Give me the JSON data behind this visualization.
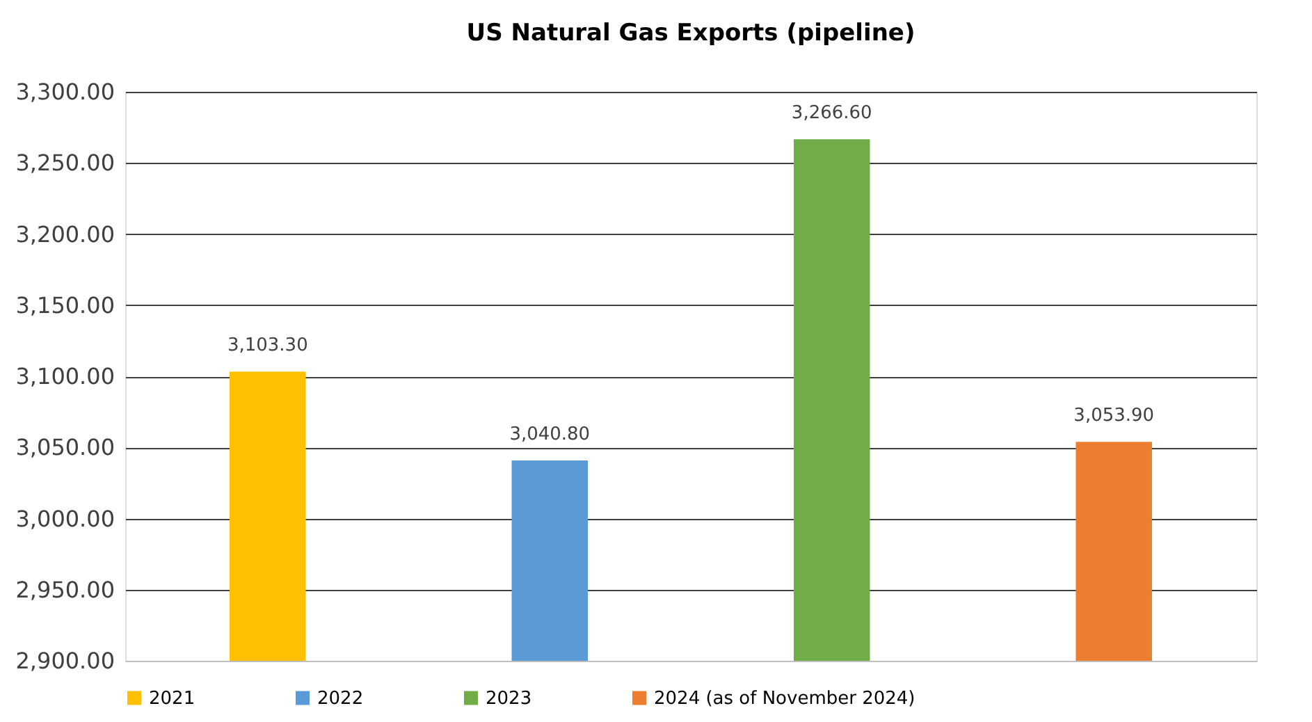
{
  "chart_data": {
    "type": "bar",
    "title": "US Natural Gas Exports (pipeline)",
    "categories": [
      null,
      null,
      null,
      null
    ],
    "series": [
      {
        "name": "2021",
        "color": "#ffc000",
        "values": [
          3103.3,
          null,
          null,
          null
        ],
        "value_labels": [
          "3,103.30",
          null,
          null,
          null
        ]
      },
      {
        "name": "2022",
        "color": "#5b9bd5",
        "values": [
          null,
          3040.8,
          null,
          null
        ],
        "value_labels": [
          null,
          "3,040.80",
          null,
          null
        ]
      },
      {
        "name": "2023",
        "color": "#70ad47",
        "values": [
          null,
          null,
          3266.6,
          null
        ],
        "value_labels": [
          null,
          null,
          "3,266.60",
          null
        ]
      },
      {
        "name": "2024 (as of November 2024)",
        "color": "#ed7d31",
        "values": [
          null,
          null,
          null,
          3053.9
        ],
        "value_labels": [
          null,
          null,
          null,
          "3,053.90"
        ]
      }
    ],
    "ylim": [
      2900,
      3300
    ],
    "yticks": [
      {
        "value": 2900,
        "label": "2,900.00"
      },
      {
        "value": 2950,
        "label": "2,950.00"
      },
      {
        "value": 3000,
        "label": "3,000.00"
      },
      {
        "value": 3050,
        "label": "3,050.00"
      },
      {
        "value": 3100,
        "label": "3,100.00"
      },
      {
        "value": 3150,
        "label": "3,150.00"
      },
      {
        "value": 3200,
        "label": "3,200.00"
      },
      {
        "value": 3250,
        "label": "3,250.00"
      },
      {
        "value": 3300,
        "label": "3,300.00"
      }
    ],
    "grid": "y",
    "legend": "bottom"
  }
}
